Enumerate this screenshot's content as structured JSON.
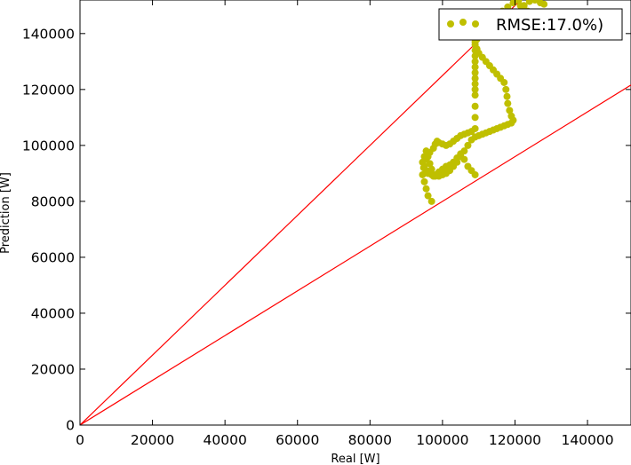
{
  "chart_data": {
    "type": "scatter",
    "xlabel": "Real [W]",
    "ylabel": "Prediction [W]",
    "xlim": [
      0,
      152000
    ],
    "ylim": [
      0,
      152000
    ],
    "x_ticks": [
      "0",
      "20000",
      "40000",
      "60000",
      "80000",
      "100000",
      "120000",
      "140000"
    ],
    "y_ticks": [
      "0",
      "20000",
      "40000",
      "60000",
      "80000",
      "100000",
      "120000",
      "140000"
    ],
    "grid": false,
    "legend_position": "top-right",
    "series": [
      {
        "name": "RMSE:17.0%)",
        "color": "#bfbf00",
        "marker": "circle",
        "x": [
          97000,
          96000,
          95500,
          95000,
          94500,
          94800,
          95500,
          96500,
          97500,
          98000,
          98500,
          99000,
          100000,
          101000,
          102000,
          103000,
          104000,
          105000,
          106000,
          107000,
          108000,
          109000,
          109000,
          109000,
          109000,
          109000,
          109000,
          109000,
          109000,
          109000,
          109000,
          109000,
          109000,
          109000,
          109000,
          109000,
          109500,
          110000,
          111000,
          112000,
          113000,
          114000,
          115000,
          116000,
          117000,
          117500,
          117800,
          118000,
          118500,
          119000,
          119500,
          119000,
          118000,
          117000,
          116000,
          115000,
          114000,
          113000,
          112000,
          111000,
          110000,
          109000,
          108000,
          107000,
          106000,
          105000,
          104000,
          103000,
          102000,
          101000,
          100000,
          99000,
          98000,
          97000,
          96000,
          95500,
          95000,
          94500,
          95000,
          95500,
          96000,
          96500,
          97000,
          97500,
          98000,
          99000,
          100000,
          101000,
          102000,
          103000,
          104000,
          105000,
          106000,
          107000,
          108000,
          109000,
          109500,
          110500,
          112000,
          113500,
          115000,
          116500,
          118000,
          119500,
          121000,
          122500,
          124000,
          125500,
          127000,
          128000,
          121500,
          123500
        ],
        "y": [
          80000,
          82000,
          84500,
          87000,
          89500,
          92000,
          95000,
          97500,
          99000,
          100500,
          101500,
          101000,
          100500,
          100000,
          100500,
          101500,
          102500,
          103500,
          104000,
          104500,
          105000,
          106000,
          110000,
          114000,
          118000,
          122000,
          126000,
          130000,
          134000,
          137000,
          140000,
          136000,
          132000,
          128000,
          124000,
          120000,
          134500,
          133000,
          131500,
          130000,
          128500,
          127000,
          125500,
          124000,
          122500,
          120000,
          117500,
          115000,
          112500,
          110500,
          109000,
          108000,
          107500,
          107000,
          106500,
          106000,
          105500,
          105000,
          104500,
          104000,
          103500,
          103000,
          102000,
          100000,
          98000,
          96000,
          94000,
          92500,
          91000,
          90000,
          89500,
          89000,
          89000,
          89500,
          90000,
          91000,
          92500,
          94000,
          96000,
          98000,
          96000,
          93500,
          91500,
          89000,
          89500,
          90500,
          91500,
          92500,
          93000,
          94000,
          95500,
          97000,
          95000,
          92500,
          91000,
          89500,
          138000,
          140500,
          142500,
          144500,
          146500,
          148000,
          149500,
          151000,
          152000,
          150000,
          151500,
          152000,
          151000,
          150500,
          150000,
          148000
        ]
      }
    ],
    "reference_lines": [
      {
        "color": "#ff0000",
        "slope": 1.25
      },
      {
        "color": "#ff0000",
        "slope": 0.8
      }
    ]
  }
}
